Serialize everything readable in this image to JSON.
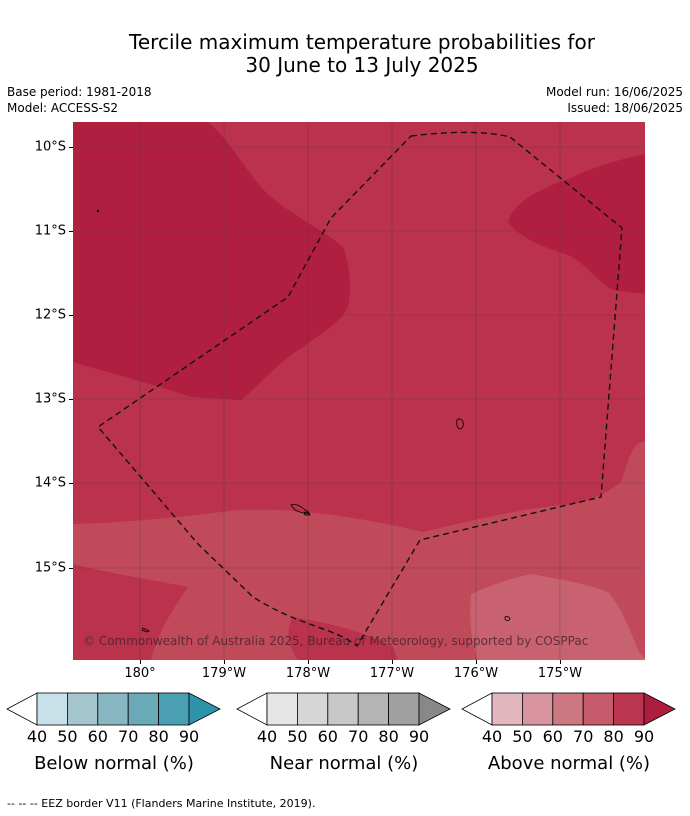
{
  "title": {
    "line1": "Tercile maximum temperature probabilities for",
    "line2": "30 June to 13 July 2025"
  },
  "meta": {
    "base_period": "Base period: 1981-2018",
    "model": "Model: ACCESS-S2",
    "model_run": "Model run: 16/06/2025",
    "issued": "Issued: 18/06/2025"
  },
  "map": {
    "credit": "© Commonwealth of Australia 2025, Bureau of Meteorology, supported by COSPPac",
    "lat_labels": [
      "10°S",
      "11°S",
      "12°S",
      "13°S",
      "14°S",
      "15°S"
    ],
    "lon_labels": [
      "180°",
      "179°W",
      "178°W",
      "177°W",
      "176°W",
      "175°W"
    ],
    "colors": {
      "dark": "#b01e40",
      "c80": "#bb324c",
      "c70": "#c14a5a",
      "c60": "#c96270",
      "c50": "#d58a96",
      "grid": "#4a3a3a",
      "eez": "#111111"
    }
  },
  "colorbars": [
    {
      "id": "below",
      "label": "Below normal (%)",
      "ticks": [
        "40",
        "50",
        "60",
        "70",
        "80",
        "90"
      ],
      "colors": [
        "#ffffff",
        "#c8e1e9",
        "#a5c6ce",
        "#88b6c2",
        "#6aaab8",
        "#4aa0b2",
        "#2d93ab"
      ]
    },
    {
      "id": "near",
      "label": "Near normal (%)",
      "ticks": [
        "40",
        "50",
        "60",
        "70",
        "80",
        "90"
      ],
      "colors": [
        "#ffffff",
        "#e6e6e6",
        "#d6d6d6",
        "#c8c8c8",
        "#b4b4b4",
        "#a0a0a0",
        "#888888"
      ]
    },
    {
      "id": "above",
      "label": "Above normal (%)",
      "ticks": [
        "40",
        "50",
        "60",
        "70",
        "80",
        "90"
      ],
      "colors": [
        "#ffffff",
        "#e2b7bf",
        "#d9959f",
        "#cd7783",
        "#c45a6a",
        "#ba3550",
        "#ad1d3d"
      ]
    }
  ],
  "footnote": "--  --  -- EEZ border V11 (Flanders Marine Institute, 2019)."
}
